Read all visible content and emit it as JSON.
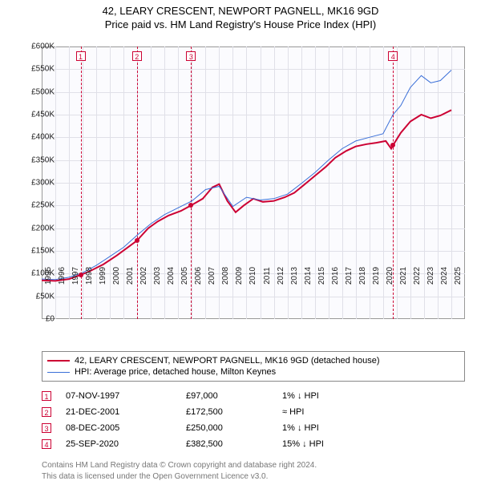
{
  "title_line1": "42, LEARY CRESCENT, NEWPORT PAGNELL, MK16 9GD",
  "title_line2": "Price paid vs. HM Land Registry's House Price Index (HPI)",
  "chart": {
    "type": "line",
    "background_color": "#fbfbfe",
    "grid_color": "#e0e0e8",
    "border_color": "#999999",
    "ylim": [
      0,
      600000
    ],
    "ytick_step": 50000,
    "yticks": [
      "£0",
      "£50K",
      "£100K",
      "£150K",
      "£200K",
      "£250K",
      "£300K",
      "£350K",
      "£400K",
      "£450K",
      "£500K",
      "£550K",
      "£600K"
    ],
    "xlim": [
      1995,
      2026
    ],
    "xtick_step": 1,
    "xticks": [
      "1995",
      "1996",
      "1997",
      "1998",
      "1999",
      "2000",
      "2001",
      "2002",
      "2003",
      "2004",
      "2005",
      "2006",
      "2007",
      "2008",
      "2009",
      "2010",
      "2011",
      "2012",
      "2013",
      "2014",
      "2015",
      "2016",
      "2017",
      "2018",
      "2019",
      "2020",
      "2021",
      "2022",
      "2023",
      "2024",
      "2025"
    ],
    "title_fontsize": 13,
    "axis_fontsize": 10,
    "series": [
      {
        "name": "property",
        "color": "#cc0033",
        "width": 2,
        "data": [
          [
            1995.0,
            85000
          ],
          [
            1996.0,
            84000
          ],
          [
            1997.0,
            88000
          ],
          [
            1997.85,
            97000
          ],
          [
            1998.5,
            105000
          ],
          [
            1999.5,
            120000
          ],
          [
            2000.5,
            140000
          ],
          [
            2001.5,
            162000
          ],
          [
            2001.97,
            172500
          ],
          [
            2002.8,
            200000
          ],
          [
            2003.5,
            215000
          ],
          [
            2004.3,
            228000
          ],
          [
            2005.2,
            238000
          ],
          [
            2005.94,
            250000
          ],
          [
            2006.8,
            265000
          ],
          [
            2007.5,
            290000
          ],
          [
            2008.0,
            297000
          ],
          [
            2008.6,
            260000
          ],
          [
            2009.2,
            235000
          ],
          [
            2009.8,
            250000
          ],
          [
            2010.5,
            265000
          ],
          [
            2011.2,
            258000
          ],
          [
            2012.0,
            260000
          ],
          [
            2012.8,
            268000
          ],
          [
            2013.5,
            278000
          ],
          [
            2014.2,
            295000
          ],
          [
            2015.0,
            315000
          ],
          [
            2015.8,
            335000
          ],
          [
            2016.5,
            355000
          ],
          [
            2017.3,
            370000
          ],
          [
            2018.0,
            380000
          ],
          [
            2018.8,
            385000
          ],
          [
            2019.5,
            388000
          ],
          [
            2020.2,
            392000
          ],
          [
            2020.6,
            375000
          ],
          [
            2020.73,
            382500
          ],
          [
            2021.3,
            410000
          ],
          [
            2022.0,
            435000
          ],
          [
            2022.8,
            450000
          ],
          [
            2023.5,
            442000
          ],
          [
            2024.2,
            448000
          ],
          [
            2025.0,
            460000
          ]
        ]
      },
      {
        "name": "hpi",
        "color": "#3a6fd8",
        "width": 1,
        "data": [
          [
            1995.0,
            88000
          ],
          [
            1996.0,
            87000
          ],
          [
            1997.0,
            92000
          ],
          [
            1998.0,
            102000
          ],
          [
            1999.0,
            118000
          ],
          [
            2000.0,
            138000
          ],
          [
            2001.0,
            158000
          ],
          [
            2002.0,
            185000
          ],
          [
            2003.0,
            210000
          ],
          [
            2004.0,
            230000
          ],
          [
            2005.0,
            245000
          ],
          [
            2006.0,
            260000
          ],
          [
            2007.0,
            285000
          ],
          [
            2008.0,
            292000
          ],
          [
            2009.0,
            248000
          ],
          [
            2010.0,
            268000
          ],
          [
            2011.0,
            262000
          ],
          [
            2012.0,
            265000
          ],
          [
            2013.0,
            275000
          ],
          [
            2014.0,
            298000
          ],
          [
            2015.0,
            322000
          ],
          [
            2016.0,
            350000
          ],
          [
            2017.0,
            375000
          ],
          [
            2018.0,
            392000
          ],
          [
            2019.0,
            400000
          ],
          [
            2020.0,
            408000
          ],
          [
            2020.73,
            450000
          ],
          [
            2021.3,
            470000
          ],
          [
            2022.0,
            510000
          ],
          [
            2022.8,
            536000
          ],
          [
            2023.5,
            520000
          ],
          [
            2024.2,
            525000
          ],
          [
            2025.0,
            548000
          ]
        ]
      }
    ],
    "markers": {
      "color": "#cc0033",
      "box_fontsize": 9,
      "items": [
        {
          "n": "1",
          "x": 1997.85,
          "y": 97000
        },
        {
          "n": "2",
          "x": 2001.97,
          "y": 172500
        },
        {
          "n": "3",
          "x": 2005.94,
          "y": 250000
        },
        {
          "n": "4",
          "x": 2020.73,
          "y": 382500
        }
      ]
    }
  },
  "legend": {
    "items": [
      {
        "color": "#cc0033",
        "width": 2,
        "label": "42, LEARY CRESCENT, NEWPORT PAGNELL, MK16 9GD (detached house)"
      },
      {
        "color": "#3a6fd8",
        "width": 1,
        "label": "HPI: Average price, detached house, Milton Keynes"
      }
    ]
  },
  "transactions": [
    {
      "n": "1",
      "date": "07-NOV-1997",
      "price": "£97,000",
      "diff": "1% ↓ HPI"
    },
    {
      "n": "2",
      "date": "21-DEC-2001",
      "price": "£172,500",
      "diff": "≈ HPI"
    },
    {
      "n": "3",
      "date": "08-DEC-2005",
      "price": "£250,000",
      "diff": "1% ↓ HPI"
    },
    {
      "n": "4",
      "date": "25-SEP-2020",
      "price": "£382,500",
      "diff": "15% ↓ HPI"
    }
  ],
  "footer_line1": "Contains HM Land Registry data © Crown copyright and database right 2024.",
  "footer_line2": "This data is licensed under the Open Government Licence v3.0."
}
